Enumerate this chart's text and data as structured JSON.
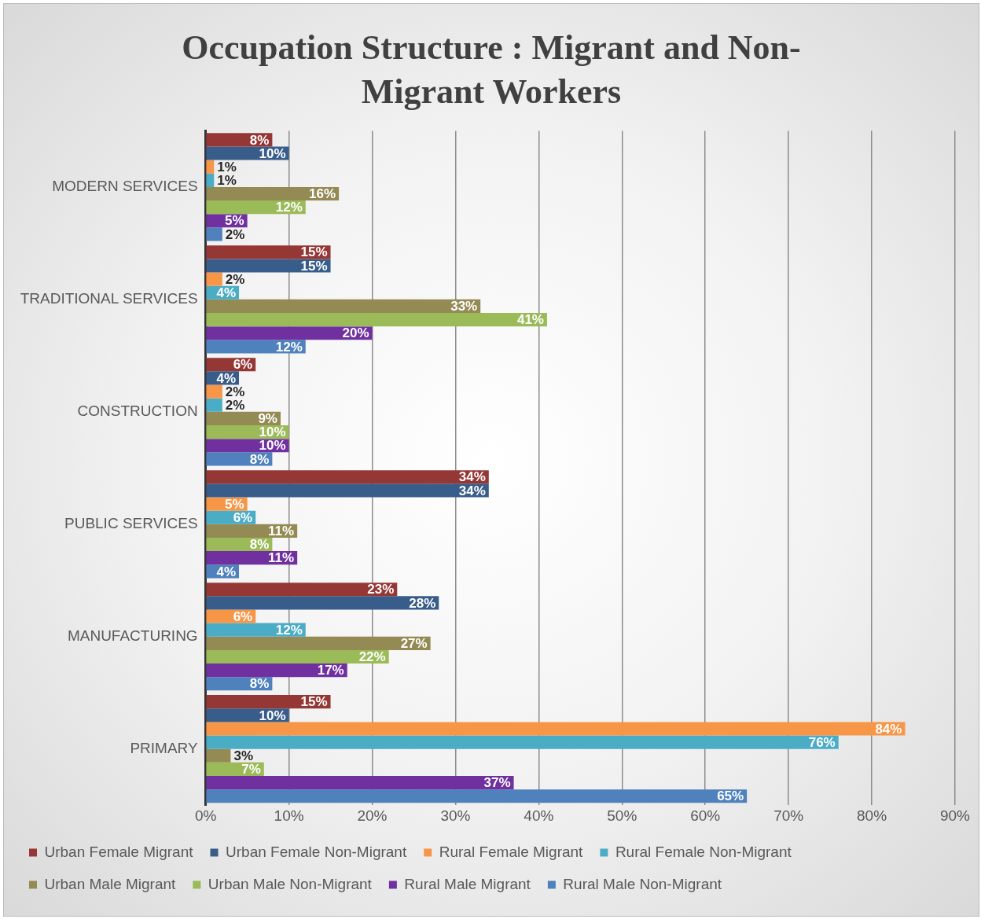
{
  "chart_data": {
    "type": "bar",
    "orientation": "horizontal",
    "title": "Occupation Structure : Migrant and Non-Migrant Workers",
    "categories": [
      "MODERN SERVICES",
      "TRADITIONAL SERVICES",
      "CONSTRUCTION",
      "PUBLIC SERVICES",
      "MANUFACTURING",
      "PRIMARY"
    ],
    "series": [
      {
        "name": "Urban Female Migrant",
        "color": "#953735",
        "values": [
          8,
          15,
          6,
          34,
          23,
          15
        ],
        "value_labels": [
          "8%",
          "15%",
          "6%",
          "34%",
          "23%",
          "15%"
        ]
      },
      {
        "name": "Urban Female Non-Migrant",
        "color": "#385d8a",
        "values": [
          10,
          15,
          4,
          34,
          28,
          10
        ],
        "value_labels": [
          "10%",
          "15%",
          "4%",
          "34%",
          "28%",
          "10%"
        ]
      },
      {
        "name": "Rural Female Migrant",
        "color": "#f79646",
        "values": [
          1,
          2,
          2,
          5,
          6,
          84
        ],
        "value_labels": [
          "1%",
          "2%",
          "2%",
          "5%",
          "6%",
          "84%"
        ]
      },
      {
        "name": "Rural Female Non-Migrant",
        "color": "#4bacc6",
        "values": [
          1,
          4,
          2,
          6,
          12,
          76
        ],
        "value_labels": [
          "1%",
          "4%",
          "2%",
          "6%",
          "12%",
          "76%"
        ]
      },
      {
        "name": "Urban Male Migrant",
        "color": "#948a54",
        "values": [
          16,
          33,
          9,
          11,
          27,
          3
        ],
        "value_labels": [
          "16%",
          "33%",
          "9%",
          "11%",
          "27%",
          "3%"
        ]
      },
      {
        "name": "Urban Male Non-Migrant",
        "color": "#9bbb59",
        "values": [
          12,
          41,
          10,
          8,
          22,
          7
        ],
        "value_labels": [
          "12%",
          "41%",
          "10%",
          "8%",
          "22%",
          "7%"
        ]
      },
      {
        "name": "Rural Male Migrant",
        "color": "#7030a0",
        "values": [
          5,
          20,
          10,
          11,
          17,
          37
        ],
        "value_labels": [
          "5%",
          "20%",
          "10%",
          "11%",
          "17%",
          "37%"
        ]
      },
      {
        "name": "Rural Male Non-Migrant",
        "color": "#4f81bd",
        "values": [
          2,
          12,
          8,
          4,
          8,
          65
        ],
        "value_labels": [
          "2%",
          "12%",
          "8%",
          "4%",
          "8%",
          "65%"
        ]
      }
    ],
    "xlim": [
      0,
      90
    ],
    "xticks": [
      {
        "value": 0,
        "label": "0%"
      },
      {
        "value": 10,
        "label": "10%"
      },
      {
        "value": 20,
        "label": "20%"
      },
      {
        "value": 30,
        "label": "30%"
      },
      {
        "value": 40,
        "label": "40%"
      },
      {
        "value": 50,
        "label": "50%"
      },
      {
        "value": 60,
        "label": "60%"
      },
      {
        "value": 70,
        "label": "70%"
      },
      {
        "value": 80,
        "label": "80%"
      },
      {
        "value": 90,
        "label": "90%"
      }
    ],
    "grid": "x",
    "legend": "bottom"
  }
}
